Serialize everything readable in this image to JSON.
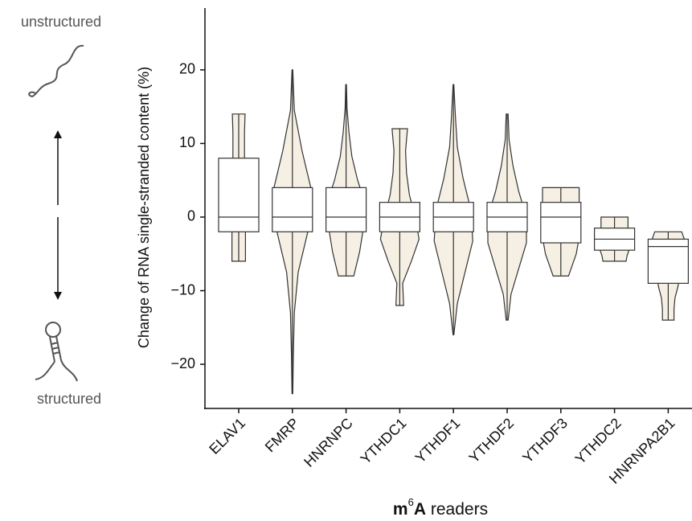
{
  "chart_data": {
    "type": "violin",
    "ylabel": "Change of RNA single-stranded content (%)",
    "xlabel": [
      "m",
      "6",
      "A",
      "readers"
    ],
    "annotations": [
      "unstructured",
      "structured"
    ],
    "categories": [
      "ELAV1",
      "FMRP",
      "HNRNPC",
      "YTHDC1",
      "YTHDF1",
      "YTHDF2",
      "YTHDF3",
      "YTHDC2",
      "HNRNPA2B1"
    ],
    "min": [
      -6,
      -24,
      -8,
      -12,
      -16,
      -14,
      -8,
      -6,
      -14
    ],
    "q1": [
      -2,
      -2,
      -2,
      -2,
      -2,
      -2,
      -3.5,
      -4.5,
      -9
    ],
    "median": [
      0,
      0,
      0,
      0,
      0,
      0,
      0,
      -3,
      -4
    ],
    "q3": [
      8,
      4,
      4,
      2,
      2,
      2,
      2,
      -1.5,
      -3
    ],
    "max": [
      14,
      20,
      18,
      12,
      18,
      14,
      4,
      0,
      -2
    ],
    "density": [
      [
        0.35,
        0.35,
        0.35,
        0.33,
        0.3,
        0.3,
        0.3,
        0.3,
        0.33
      ],
      [
        0.02,
        0.05,
        0.1,
        0.3,
        0.8,
        1.0,
        0.5,
        0.1,
        0.02
      ],
      [
        0.4,
        0.7,
        0.9,
        1.0,
        0.6,
        0.3,
        0.15,
        0.05,
        0.02
      ],
      [
        0.2,
        0.15,
        0.6,
        1.0,
        0.8,
        0.5,
        0.35,
        0.3,
        0.4
      ],
      [
        0.02,
        0.2,
        0.6,
        1.0,
        0.9,
        0.5,
        0.2,
        0.1,
        0.02
      ],
      [
        0.05,
        0.2,
        0.6,
        1.0,
        1.0,
        0.6,
        0.3,
        0.1,
        0.05
      ],
      [
        0.4,
        0.6,
        0.8,
        0.9,
        0.95,
        0.95,
        0.95,
        0.95,
        0.95
      ],
      [
        0.6,
        0.65,
        0.75,
        0.8,
        0.8,
        0.75,
        0.7,
        0.7,
        0.7
      ],
      [
        0.3,
        0.3,
        0.35,
        0.5,
        0.6,
        0.7,
        0.9,
        0.9,
        0.7
      ]
    ],
    "fill": "#f6f0e4",
    "ylim": [
      -26,
      28.4
    ],
    "yticks": [
      {
        "value": -20,
        "label": "−20"
      },
      {
        "value": -10,
        "label": "−10"
      },
      0,
      10,
      20
    ]
  }
}
